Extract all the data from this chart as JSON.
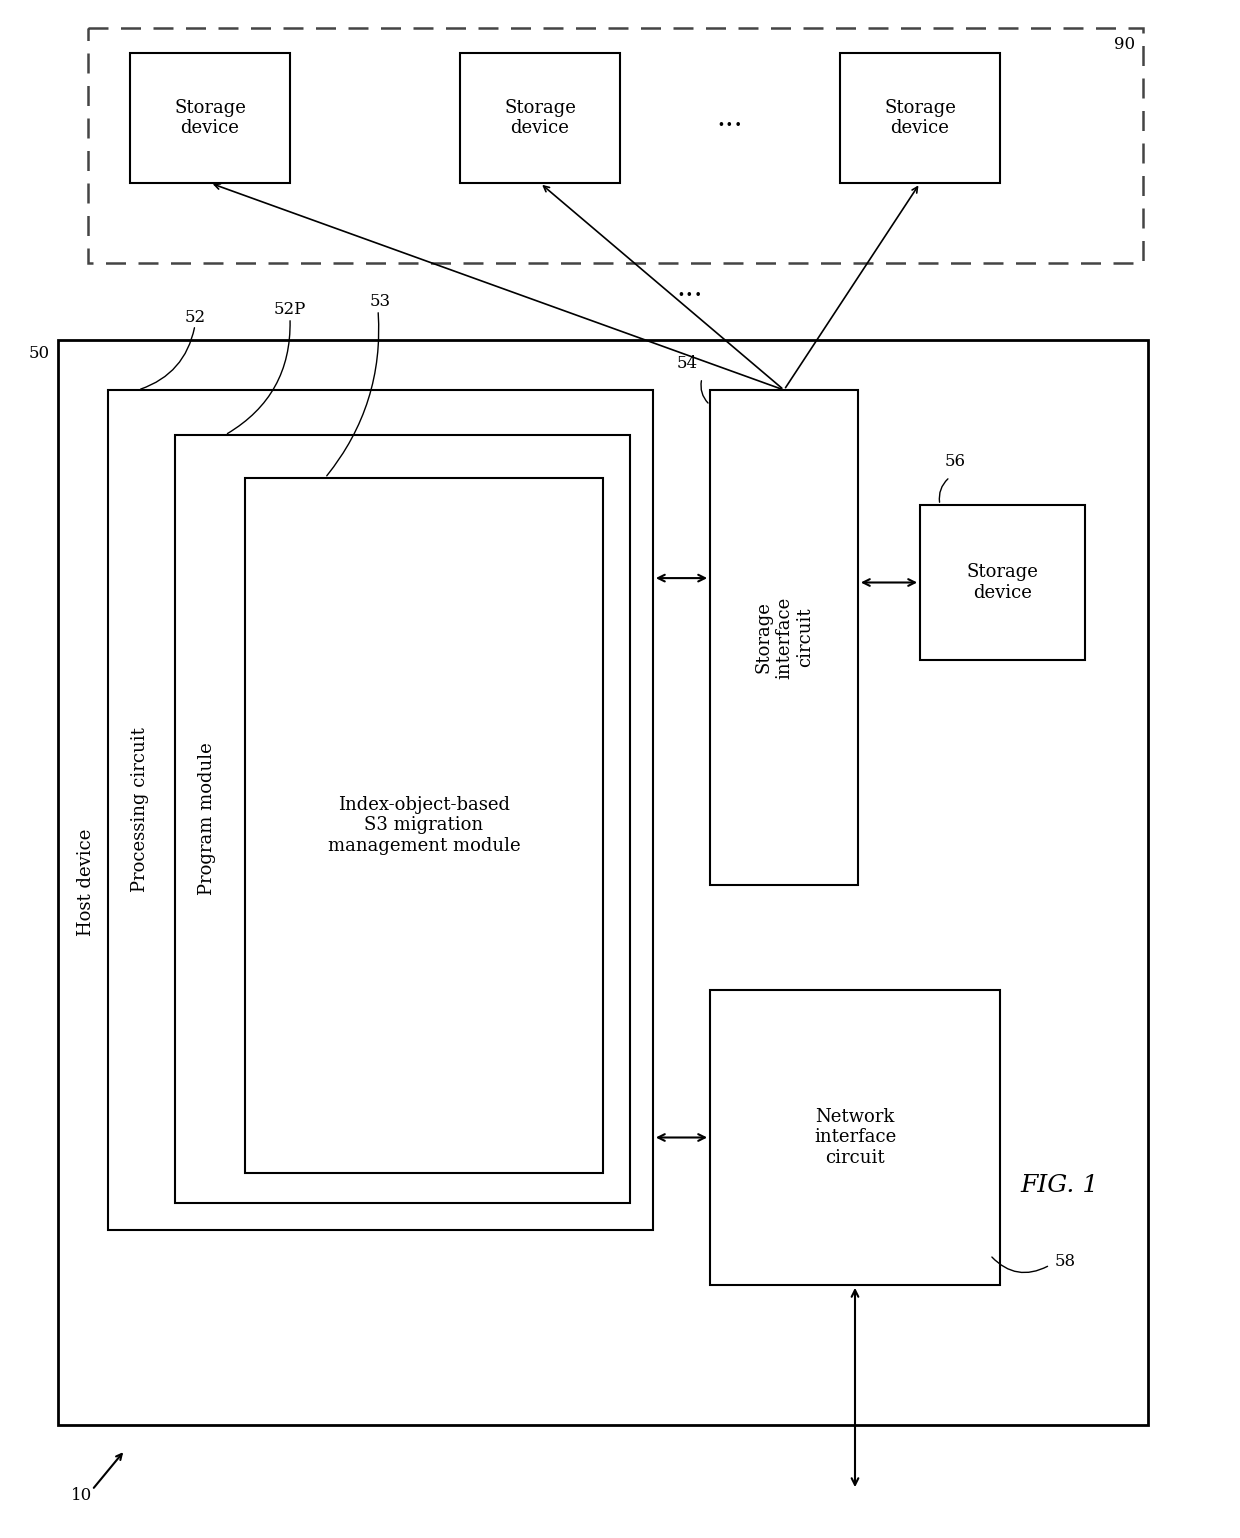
{
  "fig_label": "FIG. 1",
  "bg_color": "#ffffff",
  "label_10": "10",
  "label_50": "50",
  "label_90": "90",
  "label_52": "52",
  "label_52P": "52P",
  "label_53": "53",
  "label_54": "54",
  "label_56": "56",
  "label_58": "58",
  "host_device_text": "Host device",
  "processing_circuit_text": "Processing circuit",
  "program_module_text": "Program module",
  "index_module_text": "Index-object-based\nS3 migration\nmanagement module",
  "storage_interface_text": "Storage\ninterface\ncircuit",
  "network_interface_text": "Network\ninterface\ncircuit",
  "storage_device_text": "Storage\ndevice",
  "dots_text": "...",
  "font_size_main": 13,
  "font_size_label": 12,
  "font_size_fig": 18
}
